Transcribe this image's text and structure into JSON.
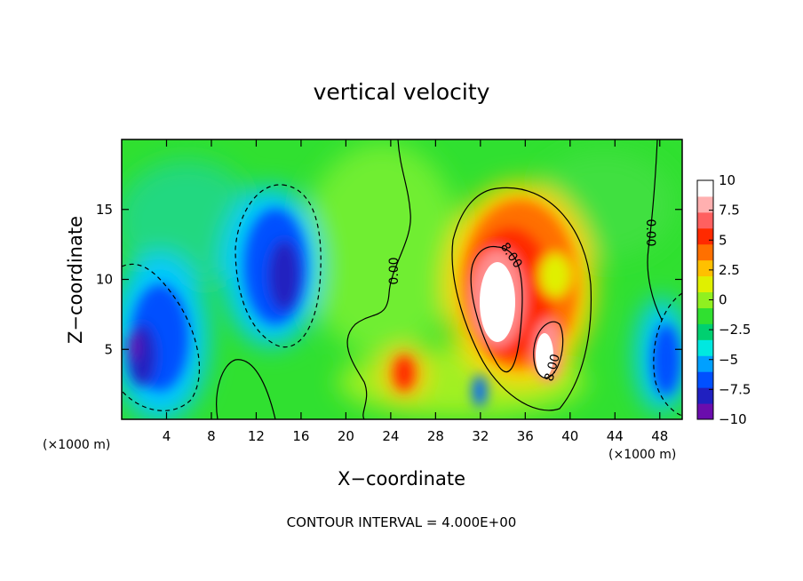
{
  "chart_data": {
    "type": "heatmap",
    "title": "vertical velocity",
    "xlabel": "X−coordinate",
    "ylabel": "Z−coordinate",
    "x_unit_left": "(×1000 m)",
    "x_unit_right": "(×1000 m)",
    "xlim": [
      0,
      50
    ],
    "ylim": [
      0,
      20
    ],
    "x_ticks": [
      4,
      8,
      12,
      16,
      20,
      24,
      28,
      32,
      36,
      40,
      44,
      48
    ],
    "x_tick_labels": [
      "4",
      "8",
      "12",
      "16",
      "20",
      "24",
      "28",
      "32",
      "36",
      "40",
      "44",
      "48"
    ],
    "y_ticks": [
      5,
      10,
      15
    ],
    "y_tick_labels": [
      "5",
      "10",
      "15"
    ],
    "colorbar": {
      "min": -10,
      "max": 10,
      "tick_values": [
        10,
        7.5,
        5,
        2.5,
        0,
        -2.5,
        -5,
        -7.5,
        -10
      ],
      "tick_labels": [
        "10",
        "7.5",
        "5",
        "2.5",
        "0",
        "−2.5",
        "−5",
        "−7.5",
        "−10"
      ],
      "colors": [
        "#6a0dad",
        "#2020c0",
        "#0050ff",
        "#00a0ff",
        "#00e8e0",
        "#00d070",
        "#30e030",
        "#90f020",
        "#e0f000",
        "#ffc000",
        "#ff7000",
        "#ff2a00",
        "#ff6060",
        "#ffb0b0",
        "#ffffff"
      ]
    },
    "contour_labels": [
      "0.00",
      "8.00",
      "8.00",
      "0.00"
    ],
    "contour_interval_text": "CONTOUR INTERVAL = 4.000E+00",
    "features": [
      {
        "x": 33,
        "z": 9.0,
        "w": 14.5,
        "note": "updraft core"
      },
      {
        "x": 38,
        "z": 5.5,
        "w": 11.0,
        "note": "secondary updraft"
      },
      {
        "x": 36,
        "z": 12,
        "w": 6.0
      },
      {
        "x": 25.5,
        "z": 2.8,
        "w": 6.0
      },
      {
        "x": 15,
        "z": 10.5,
        "w": -7.0,
        "note": "downdraft"
      },
      {
        "x": 3,
        "z": 5,
        "w": -9.0,
        "note": "downdraft"
      },
      {
        "x": 48.5,
        "z": 4.5,
        "w": -6.0,
        "note": "downdraft"
      }
    ]
  }
}
